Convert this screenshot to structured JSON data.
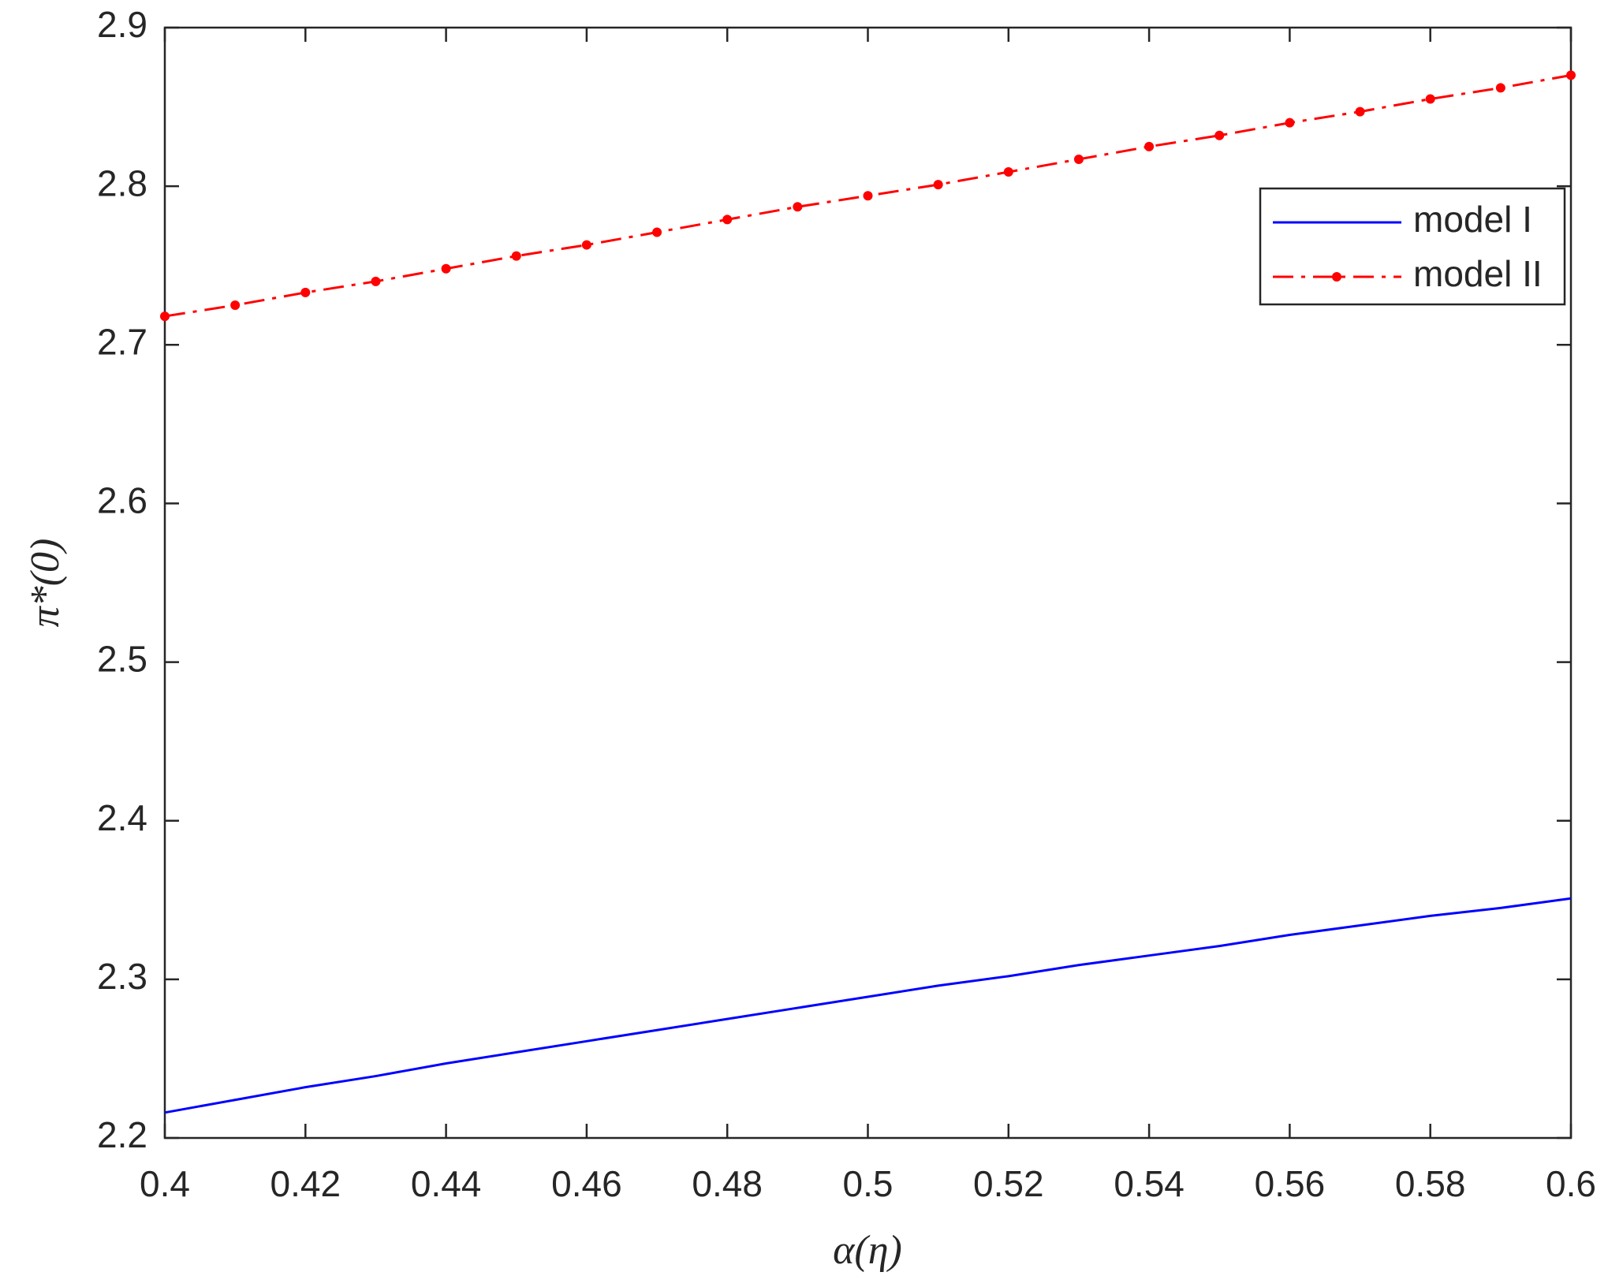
{
  "chart_data": {
    "type": "line",
    "xlabel": "α(η)",
    "ylabel": "π*(0)",
    "x": [
      0.4,
      0.41,
      0.42,
      0.43,
      0.44,
      0.45,
      0.46,
      0.47,
      0.48,
      0.49,
      0.5,
      0.51,
      0.52,
      0.53,
      0.54,
      0.55,
      0.56,
      0.57,
      0.58,
      0.59,
      0.6
    ],
    "series": [
      {
        "name": "model I",
        "color": "#0000ff",
        "style": "solid",
        "marker": false,
        "values": [
          2.216,
          2.224,
          2.232,
          2.239,
          2.247,
          2.254,
          2.261,
          2.268,
          2.275,
          2.282,
          2.289,
          2.296,
          2.302,
          2.309,
          2.315,
          2.321,
          2.328,
          2.334,
          2.34,
          2.345,
          2.351
        ]
      },
      {
        "name": "model II",
        "color": "#ff0000",
        "style": "dashdot",
        "marker": true,
        "values": [
          2.718,
          2.725,
          2.733,
          2.74,
          2.748,
          2.756,
          2.763,
          2.771,
          2.779,
          2.787,
          2.794,
          2.801,
          2.809,
          2.817,
          2.825,
          2.832,
          2.84,
          2.847,
          2.855,
          2.862,
          2.87
        ]
      }
    ],
    "xlim": [
      0.4,
      0.6
    ],
    "xticks": [
      0.4,
      0.42,
      0.44,
      0.46,
      0.48,
      0.5,
      0.52,
      0.54,
      0.56,
      0.58,
      0.6
    ],
    "ylim": [
      2.2,
      2.9
    ],
    "yticks": [
      2.2,
      2.3,
      2.4,
      2.5,
      2.6,
      2.7,
      2.8,
      2.9
    ],
    "legend": "upper right",
    "grid": false
  }
}
